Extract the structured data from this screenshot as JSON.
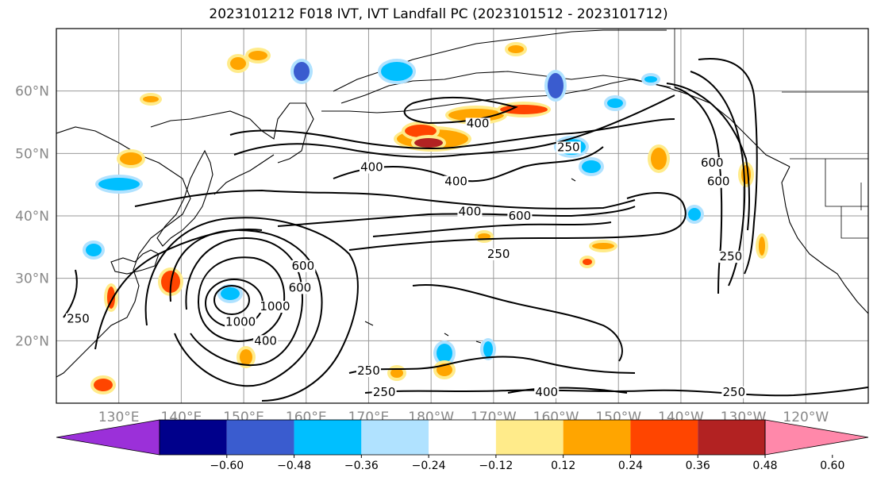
{
  "title": "2023101212 F018 IVT, IVT Landfall PC (2023101512 - 2023101712)",
  "map": {
    "lon_min": 120,
    "lon_max": 250,
    "lat_min": 10,
    "lat_max": 70,
    "lat_labels": [
      {
        "lat": 60,
        "text": "60°N"
      },
      {
        "lat": 50,
        "text": "50°N"
      },
      {
        "lat": 40,
        "text": "40°N"
      },
      {
        "lat": 30,
        "text": "30°N"
      },
      {
        "lat": 20,
        "text": "20°N"
      }
    ],
    "lon_labels": [
      {
        "lon": 130,
        "text": "130°E"
      },
      {
        "lon": 140,
        "text": "140°E"
      },
      {
        "lon": 150,
        "text": "150°E"
      },
      {
        "lon": 160,
        "text": "160°E"
      },
      {
        "lon": 170,
        "text": "170°E"
      },
      {
        "lon": 180,
        "text": "180°W"
      },
      {
        "lon": 190,
        "text": "170°W"
      },
      {
        "lon": 200,
        "text": "160°W"
      },
      {
        "lon": 210,
        "text": "150°W"
      },
      {
        "lon": 220,
        "text": "140°W"
      },
      {
        "lon": 230,
        "text": "130°W"
      },
      {
        "lon": 240,
        "text": "120°W"
      }
    ],
    "grid": true,
    "contour_labels": [
      {
        "text": "400",
        "lon": 187.5,
        "lat": 54.3
      },
      {
        "text": "400",
        "lon": 170.5,
        "lat": 47.3
      },
      {
        "text": "400",
        "lon": 184.0,
        "lat": 45.0
      },
      {
        "text": "400",
        "lon": 186.2,
        "lat": 40.2
      },
      {
        "text": "600",
        "lon": 194.2,
        "lat": 39.5
      },
      {
        "text": "250",
        "lon": 190.8,
        "lat": 33.4
      },
      {
        "text": "250",
        "lon": 202.0,
        "lat": 50.5
      },
      {
        "text": "600",
        "lon": 225.0,
        "lat": 48.0
      },
      {
        "text": "600",
        "lon": 226.0,
        "lat": 45.0
      },
      {
        "text": "250",
        "lon": 228.0,
        "lat": 33.0
      },
      {
        "text": "1000",
        "lon": 155.0,
        "lat": 25.0
      },
      {
        "text": "600",
        "lon": 159.5,
        "lat": 31.5
      },
      {
        "text": "600",
        "lon": 159.0,
        "lat": 28.0
      },
      {
        "text": "400",
        "lon": 153.5,
        "lat": 19.5
      },
      {
        "text": "1000",
        "lon": 149.5,
        "lat": 22.5
      },
      {
        "text": "250",
        "lon": 123.5,
        "lat": 23.0
      },
      {
        "text": "250",
        "lon": 170.0,
        "lat": 14.7
      },
      {
        "text": "250",
        "lon": 172.5,
        "lat": 11.3
      },
      {
        "text": "400",
        "lon": 198.5,
        "lat": 11.3
      },
      {
        "text": "250",
        "lon": 228.5,
        "lat": 11.3
      }
    ]
  },
  "colorbar": {
    "colors": [
      "#9b30d9",
      "#00008b",
      "#3a5ccf",
      "#00bfff",
      "#b0e2ff",
      "#ffffff",
      "#ffeb8a",
      "#ffa500",
      "#ff4500",
      "#b22222",
      "#ff88aa"
    ],
    "ticks": [
      "−0.60",
      "−0.48",
      "−0.36",
      "−0.24",
      "−0.12",
      "0.12",
      "0.24",
      "0.36",
      "0.48",
      "0.60"
    ]
  }
}
